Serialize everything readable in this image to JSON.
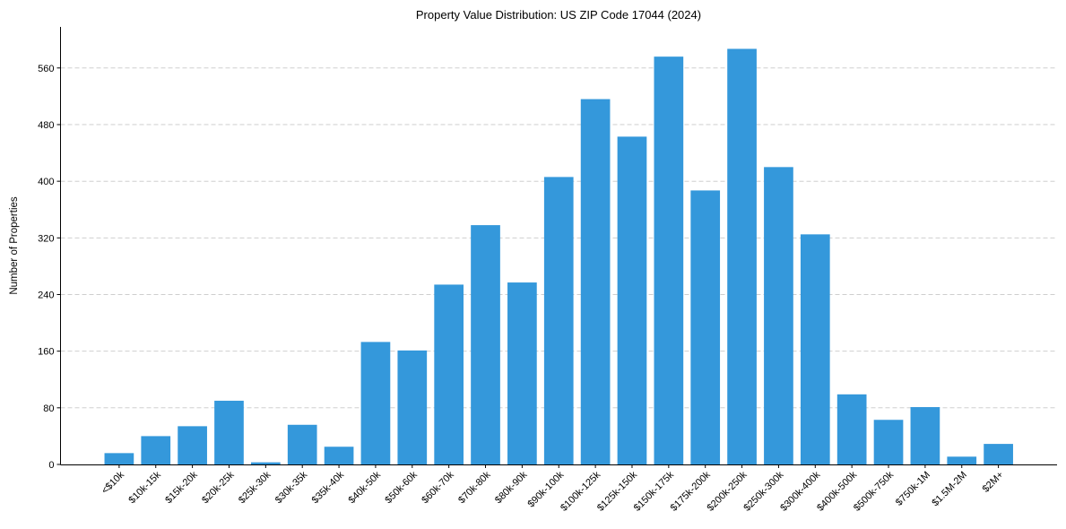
{
  "chart_data": {
    "type": "bar",
    "title": "Property Value Distribution: US ZIP Code 17044 (2024)",
    "xlabel": "",
    "ylabel": "Number of Properties",
    "categories": [
      "<$10k",
      "$10k-15k",
      "$15k-20k",
      "$20k-25k",
      "$25k-30k",
      "$30k-35k",
      "$35k-40k",
      "$40k-50k",
      "$50k-60k",
      "$60k-70k",
      "$70k-80k",
      "$80k-90k",
      "$90k-100k",
      "$100k-125k",
      "$125k-150k",
      "$150k-175k",
      "$175k-200k",
      "$200k-250k",
      "$250k-300k",
      "$300k-400k",
      "$400k-500k",
      "$500k-750k",
      "$750k-1M",
      "$1.5M-2M",
      "$2M+"
    ],
    "values": [
      16,
      40,
      54,
      90,
      3,
      56,
      25,
      173,
      161,
      254,
      338,
      257,
      406,
      516,
      463,
      576,
      387,
      587,
      420,
      325,
      99,
      63,
      81,
      11,
      29
    ],
    "yticks": [
      0,
      80,
      160,
      240,
      320,
      400,
      480,
      560
    ],
    "ylim": [
      0,
      618
    ],
    "grid": {
      "y": true,
      "x": false,
      "style": "dashed"
    },
    "legend": null,
    "bar_color": "#3498db"
  }
}
